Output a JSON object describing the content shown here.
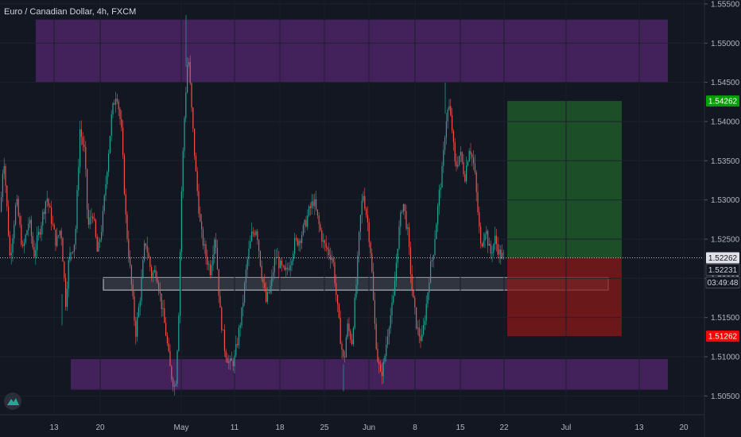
{
  "chart_data": {
    "type": "candlestick",
    "title": "Euro / Canadian Dollar, 4h, FXCM",
    "y_ticks": [
      "1.50500",
      "1.51000",
      "1.51500",
      "1.52000",
      "1.52500",
      "1.53000",
      "1.53500",
      "1.54000",
      "1.54500",
      "1.55000",
      "1.55500"
    ],
    "x_ticks": [
      "13",
      "20",
      "May",
      "11",
      "18",
      "25",
      "Jun",
      "8",
      "15",
      "22",
      "Jul",
      "13",
      "20"
    ],
    "ylim": [
      1.5026,
      1.5555
    ],
    "price_badges": [
      {
        "value": "1.54262",
        "color": "#00a000",
        "text_color": "#ffffff"
      },
      {
        "value": "1.52262",
        "color": "#dfe1e6",
        "text_color": "#131722"
      },
      {
        "value": "1.52231",
        "color": "#131722",
        "text_color": "#d1d4dc"
      },
      {
        "value": "03:49:48",
        "color": "#131722",
        "text_color": "#d1d4dc"
      },
      {
        "value": "1.51262",
        "color": "#ff0000",
        "text_color": "#ffffff"
      }
    ],
    "current_price": 1.52262,
    "zones": [
      {
        "kind": "supply",
        "from": 1.545,
        "to": 1.553,
        "color": "#6b2a8a"
      },
      {
        "kind": "demand",
        "from": 1.5058,
        "to": 1.5097,
        "color": "#6b2a8a"
      },
      {
        "kind": "range",
        "from": 1.5185,
        "to": 1.5201,
        "color": "#9aa0aa"
      }
    ],
    "position": {
      "entry": 1.52262,
      "target": 1.54262,
      "stop": 1.51262,
      "profit_color": "#1f5e2b",
      "loss_color": "#8a1a1a"
    },
    "path": [
      [
        0,
        1.5285
      ],
      [
        4,
        1.536
      ],
      [
        12,
        1.5225
      ],
      [
        20,
        1.53
      ],
      [
        28,
        1.5235
      ],
      [
        36,
        1.5275
      ],
      [
        42,
        1.523
      ],
      [
        50,
        1.5265
      ],
      [
        58,
        1.5305
      ],
      [
        64,
        1.5275
      ],
      [
        70,
        1.5245
      ],
      [
        76,
        1.5265
      ],
      [
        82,
        1.517
      ],
      [
        86,
        1.5225
      ],
      [
        94,
        1.525
      ],
      [
        100,
        1.539
      ],
      [
        106,
        1.536
      ],
      [
        110,
        1.5265
      ],
      [
        116,
        1.5285
      ],
      [
        122,
        1.523
      ],
      [
        128,
        1.527
      ],
      [
        134,
        1.534
      ],
      [
        140,
        1.541
      ],
      [
        146,
        1.544
      ],
      [
        152,
        1.539
      ],
      [
        158,
        1.527
      ],
      [
        164,
        1.52
      ],
      [
        170,
        1.513
      ],
      [
        176,
        1.518
      ],
      [
        182,
        1.525
      ],
      [
        190,
        1.5205
      ],
      [
        196,
        1.521
      ],
      [
        202,
        1.517
      ],
      [
        208,
        1.513
      ],
      [
        214,
        1.508
      ],
      [
        220,
        1.5058
      ],
      [
        224,
        1.515
      ],
      [
        228,
        1.532
      ],
      [
        232,
        1.542
      ],
      [
        236,
        1.549
      ],
      [
        240,
        1.542
      ],
      [
        246,
        1.533
      ],
      [
        252,
        1.526
      ],
      [
        258,
        1.523
      ],
      [
        264,
        1.521
      ],
      [
        270,
        1.526
      ],
      [
        276,
        1.516
      ],
      [
        282,
        1.511
      ],
      [
        288,
        1.509
      ],
      [
        294,
        1.5095
      ],
      [
        298,
        1.512
      ],
      [
        304,
        1.516
      ],
      [
        310,
        1.522
      ],
      [
        316,
        1.5255
      ],
      [
        322,
        1.5265
      ],
      [
        328,
        1.521
      ],
      [
        334,
        1.517
      ],
      [
        340,
        1.519
      ],
      [
        346,
        1.523
      ],
      [
        352,
        1.5215
      ],
      [
        358,
        1.5205
      ],
      [
        364,
        1.522
      ],
      [
        370,
        1.5245
      ],
      [
        376,
        1.525
      ],
      [
        382,
        1.5265
      ],
      [
        388,
        1.5285
      ],
      [
        394,
        1.53
      ],
      [
        400,
        1.527
      ],
      [
        406,
        1.5245
      ],
      [
        412,
        1.5235
      ],
      [
        418,
        1.5225
      ],
      [
        424,
        1.516
      ],
      [
        428,
        1.512
      ],
      [
        432,
        1.509
      ],
      [
        436,
        1.514
      ],
      [
        442,
        1.512
      ],
      [
        448,
        1.52
      ],
      [
        452,
        1.527
      ],
      [
        456,
        1.531
      ],
      [
        462,
        1.527
      ],
      [
        466,
        1.523
      ],
      [
        470,
        1.515
      ],
      [
        474,
        1.51
      ],
      [
        478,
        1.5075
      ],
      [
        482,
        1.509
      ],
      [
        488,
        1.514
      ],
      [
        494,
        1.517
      ],
      [
        500,
        1.525
      ],
      [
        506,
        1.53
      ],
      [
        512,
        1.526
      ],
      [
        518,
        1.518
      ],
      [
        524,
        1.5135
      ],
      [
        530,
        1.512
      ],
      [
        536,
        1.517
      ],
      [
        540,
        1.521
      ],
      [
        544,
        1.523
      ],
      [
        548,
        1.527
      ],
      [
        552,
        1.531
      ],
      [
        556,
        1.534
      ],
      [
        560,
        1.54
      ],
      [
        564,
        1.542
      ],
      [
        568,
        1.539
      ],
      [
        572,
        1.534
      ],
      [
        578,
        1.536
      ],
      [
        584,
        1.533
      ],
      [
        590,
        1.537
      ],
      [
        596,
        1.534
      ],
      [
        600,
        1.529
      ],
      [
        604,
        1.524
      ],
      [
        610,
        1.5265
      ],
      [
        616,
        1.523
      ],
      [
        622,
        1.525
      ],
      [
        628,
        1.523
      ],
      [
        634,
        1.5226
      ]
    ]
  }
}
